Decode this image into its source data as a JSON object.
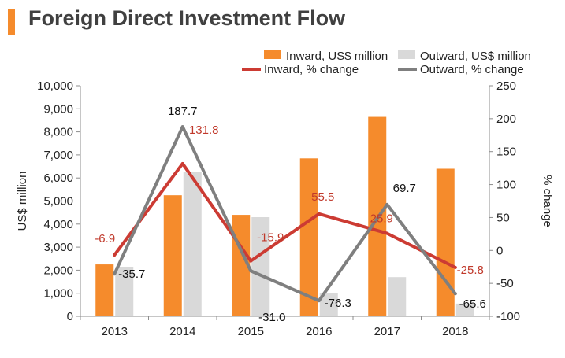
{
  "title": "Foreign Direct Investment Flow",
  "colors": {
    "accent": "#f58b2c",
    "inward_bar": "#f58b2c",
    "outward_bar": "#d9d9d9",
    "inward_line": "#cc3b33",
    "outward_line": "#7f7f7f",
    "axis": "#8c8c8c"
  },
  "chart_data": {
    "type": "bar",
    "categories": [
      "2013",
      "2014",
      "2015",
      "2016",
      "2017",
      "2018"
    ],
    "series": [
      {
        "name": "Inward, US$ million",
        "type": "bar",
        "axis": "left",
        "values": [
          2250,
          5250,
          4400,
          6850,
          8650,
          6400
        ]
      },
      {
        "name": "Outward, US$ million",
        "type": "bar",
        "axis": "left",
        "values": [
          2150,
          6250,
          4300,
          1000,
          1700,
          550
        ]
      },
      {
        "name": "Inward, % change",
        "type": "line",
        "axis": "right",
        "values": [
          -6.9,
          131.8,
          -15.9,
          55.5,
          25.9,
          -25.8
        ],
        "labels": [
          "-6.9",
          "131.8",
          "-15.9",
          "55.5",
          "25.9",
          "-25.8"
        ]
      },
      {
        "name": "Outward, % change",
        "type": "line",
        "axis": "right",
        "values": [
          -35.7,
          187.7,
          -31.0,
          -76.3,
          69.7,
          -65.6
        ],
        "labels": [
          "-35.7",
          "187.7",
          "-31.0",
          "-76.3",
          "69.7",
          "-65.6"
        ]
      }
    ],
    "y_left": {
      "label": "US$ million",
      "range": [
        0,
        10000
      ],
      "ticks": [
        "0",
        "1,000",
        "2,000",
        "3,000",
        "4,000",
        "5,000",
        "6,000",
        "7,000",
        "8,000",
        "9,000",
        "10,000"
      ]
    },
    "y_right": {
      "label": "% change",
      "range": [
        -100,
        250
      ],
      "ticks": [
        "-100",
        "-50",
        "0",
        "50",
        "100",
        "150",
        "200",
        "250"
      ]
    },
    "grid": false,
    "legend": "top-right"
  }
}
